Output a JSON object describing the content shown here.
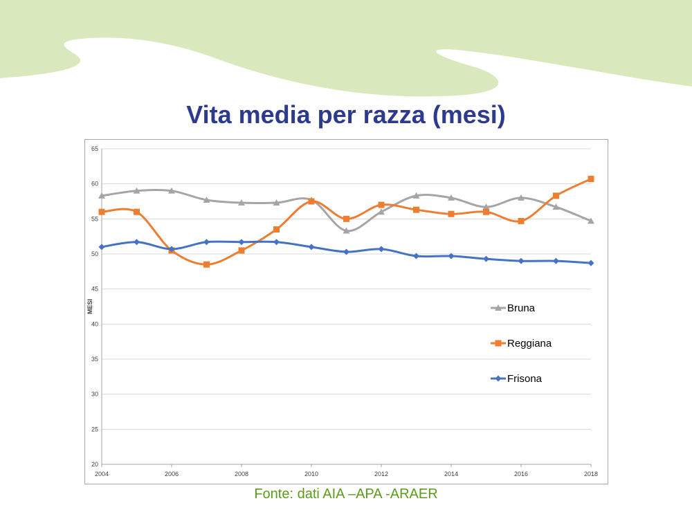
{
  "slide": {
    "title": "Vita media per razza (mesi)",
    "source": "Fonte: dati AIA –APA -ARAER"
  },
  "colors": {
    "title": "#2e3a8c",
    "source": "#5b9b1c",
    "wave": "#d9e8bd",
    "grid": "#d9d9d9",
    "axis": "#a6a6a6"
  },
  "chart_data": {
    "type": "line",
    "title": "",
    "xlabel": "",
    "ylabel": "MESI",
    "x": [
      2004,
      2005,
      2006,
      2007,
      2008,
      2009,
      2010,
      2011,
      2012,
      2013,
      2014,
      2015,
      2016,
      2017,
      2018
    ],
    "xticks": [
      2004,
      2006,
      2008,
      2010,
      2012,
      2014,
      2016,
      2018
    ],
    "ylim": [
      20,
      65
    ],
    "yticks": [
      20,
      25,
      30,
      35,
      40,
      45,
      50,
      55,
      60,
      65
    ],
    "grid": true,
    "smooth": true,
    "legend_position": "right",
    "series": [
      {
        "name": "Bruna",
        "color": "#a5a5a5",
        "marker": "triangle",
        "values": [
          58.3,
          59.0,
          59.0,
          57.7,
          57.3,
          57.3,
          57.7,
          53.3,
          56.0,
          58.3,
          58.0,
          56.7,
          58.0,
          56.7,
          54.7
        ]
      },
      {
        "name": "Reggiana",
        "color": "#ed7d31",
        "marker": "square",
        "values": [
          56.0,
          56.0,
          50.5,
          48.5,
          50.5,
          53.5,
          57.5,
          55.0,
          57.0,
          56.3,
          55.7,
          56.0,
          54.7,
          58.3,
          60.7
        ]
      },
      {
        "name": "Frisona",
        "color": "#4472c4",
        "marker": "diamond",
        "values": [
          51.0,
          51.7,
          50.7,
          51.7,
          51.7,
          51.7,
          51.0,
          50.3,
          50.7,
          49.7,
          49.7,
          49.3,
          49.0,
          49.0,
          48.7
        ]
      }
    ]
  }
}
